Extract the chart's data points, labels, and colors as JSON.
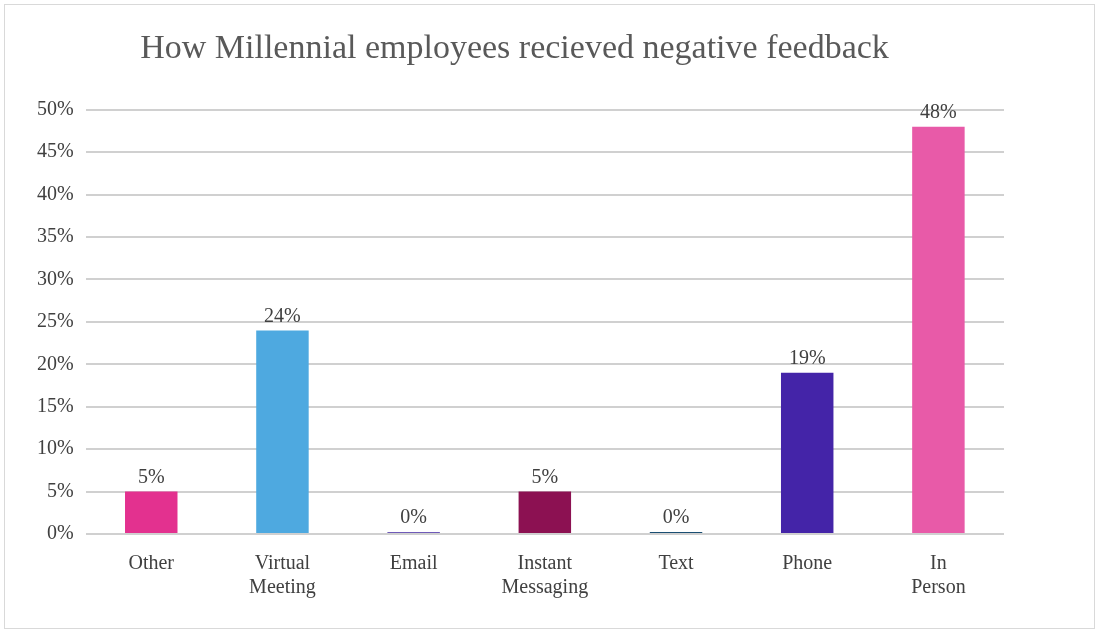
{
  "chart_data": {
    "type": "bar",
    "title": "How Millennial employees recieved negative feedback",
    "categories": [
      "Other",
      "Virtual Meeting",
      "Email",
      "Instant Messaging",
      "Text",
      "Phone",
      "In Person"
    ],
    "values": [
      5,
      24,
      0,
      5,
      0,
      19,
      48
    ],
    "colors": [
      "#e3318f",
      "#4ea9e0",
      "#6f5ab8",
      "#8c1152",
      "#1a4e72",
      "#4424a8",
      "#e85aa8"
    ],
    "value_labels": [
      "5%",
      "24%",
      "0%",
      "5%",
      "0%",
      "19%",
      "48%"
    ],
    "ylim": [
      0,
      50
    ],
    "yticks": [
      {
        "value": 0,
        "label": "0%"
      },
      {
        "value": 5,
        "label": "5%"
      },
      {
        "value": 10,
        "label": "10%"
      },
      {
        "value": 15,
        "label": "15%"
      },
      {
        "value": 20,
        "label": "20%"
      },
      {
        "value": 25,
        "label": "25%"
      },
      {
        "value": 30,
        "label": "30%"
      },
      {
        "value": 35,
        "label": "35%"
      },
      {
        "value": 40,
        "label": "40%"
      },
      {
        "value": 45,
        "label": "45%"
      },
      {
        "value": 50,
        "label": "50%"
      }
    ],
    "grid": "y",
    "legend": false
  }
}
